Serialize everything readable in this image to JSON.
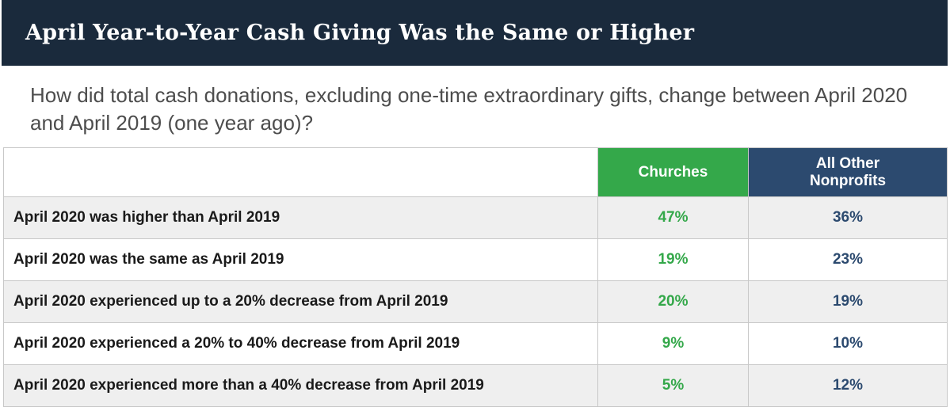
{
  "title": "April Year-to-Year Cash Giving Was the Same or Higher",
  "subtitle": "How did total cash donations, excluding one-time extraordinary gifts, change between April 2020 and April 2019 (one year ago)?",
  "colors": {
    "title_bg": "#1a2a3c",
    "churches": "#34a84a",
    "nonprofits": "#2c4a6f",
    "row_shade": "#efefef"
  },
  "chart_data": {
    "type": "table",
    "title": "April Year-to-Year Cash Giving Was the Same or Higher",
    "subtitle": "How did total cash donations, excluding one-time extraordinary gifts, change between April 2020 and April 2019 (one year ago)?",
    "columns": [
      "",
      "Churches",
      "All Other Nonprofits"
    ],
    "rows": [
      {
        "label": "April 2020 was higher than April 2019",
        "churches": "47%",
        "nonprofits": "36%"
      },
      {
        "label": "April 2020 was the same as April 2019",
        "churches": "19%",
        "nonprofits": "23%"
      },
      {
        "label": "April 2020 experienced up to a 20% decrease from April 2019",
        "churches": "20%",
        "nonprofits": "19%"
      },
      {
        "label": "April 2020 experienced a 20% to 40% decrease from April 2019",
        "churches": "9%",
        "nonprofits": "10%"
      },
      {
        "label": "April 2020 experienced more than a 40% decrease from April 2019",
        "churches": "5%",
        "nonprofits": "12%"
      }
    ],
    "series": [
      {
        "name": "Churches",
        "values": [
          47,
          19,
          20,
          9,
          5
        ]
      },
      {
        "name": "All Other Nonprofits",
        "values": [
          36,
          23,
          19,
          10,
          12
        ]
      }
    ]
  }
}
